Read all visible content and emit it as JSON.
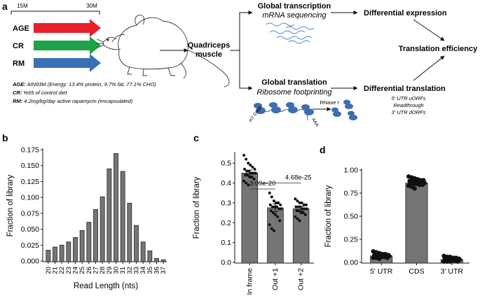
{
  "panel_a": {
    "letter": "a",
    "timeline": {
      "start": "15M",
      "end": "30M"
    },
    "groups": [
      {
        "label": "AGE",
        "color": "#e8202a"
      },
      {
        "label": "CR",
        "color": "#1fa34a"
      },
      {
        "label": "RM",
        "color": "#3b6fb6"
      }
    ],
    "tissue": "Quadriceps\nmuscle",
    "transcription_title": "Global transcription",
    "transcription_sub": "mRNA sequencing",
    "translation_title": "Global translation",
    "translation_sub": "Ribosome footprinting",
    "diff_expression": "Differential expression",
    "translation_efficiency": "Translation efficiency",
    "diff_translation": "Differential translation",
    "diff_translation_items": [
      "5' UTR uORFs",
      "Readthrough",
      "3' UTR dORFs"
    ],
    "rnase": "RNase I",
    "cap": "m7 Gppp",
    "polya": "AAA",
    "legend": [
      {
        "key": "AGE:",
        "text": " AIN93M (Energy: 13.4% protein, 9.7% fat, 77.1% CHO)"
      },
      {
        "key": "CR:",
        "text": " %65 of control diet"
      },
      {
        "key": "RM:",
        "text": " 4.2mg/kg/day active rapamycin (encapsulated)"
      }
    ]
  },
  "chart_data": [
    {
      "panel": "b",
      "type": "bar",
      "xlabel": "Read Length (nts)",
      "ylabel": "Fraction of library",
      "ylim": [
        0,
        0.175
      ],
      "yticks": [
        "0.000",
        "0.025",
        "0.050",
        "0.075",
        "0.100",
        "0.125",
        "0.150",
        "0.175"
      ],
      "categories": [
        "20",
        "21",
        "22",
        "23",
        "24",
        "25",
        "26",
        "27",
        "28",
        "29",
        "30",
        "31",
        "32",
        "33",
        "34",
        "35",
        "36",
        "37"
      ],
      "values": [
        0.017,
        0.022,
        0.025,
        0.03,
        0.037,
        0.048,
        0.061,
        0.081,
        0.101,
        0.145,
        0.169,
        0.141,
        0.091,
        0.056,
        0.03,
        0.016,
        0.004,
        0.002
      ],
      "bar_color": "#757575"
    },
    {
      "panel": "c",
      "type": "bar",
      "ylabel": "Fraction of library",
      "ylim": [
        0,
        0.55
      ],
      "yticks": [
        "0.0",
        "0.1",
        "0.2",
        "0.3",
        "0.4",
        "0.5"
      ],
      "categories": [
        "In frame",
        "Out +1",
        "Out +2"
      ],
      "values": [
        0.45,
        0.275,
        0.27
      ],
      "errors": [
        0.015,
        0.02,
        0.012
      ],
      "points": [
        [
          0.54,
          0.52,
          0.5,
          0.49,
          0.48,
          0.47,
          0.47,
          0.46,
          0.46,
          0.45,
          0.45,
          0.45,
          0.44,
          0.44,
          0.43,
          0.43,
          0.42,
          0.41,
          0.4,
          0.39
        ],
        [
          0.35,
          0.33,
          0.31,
          0.3,
          0.3,
          0.29,
          0.29,
          0.28,
          0.28,
          0.28,
          0.27,
          0.27,
          0.26,
          0.25,
          0.24,
          0.23,
          0.21,
          0.19,
          0.17,
          0.16
        ],
        [
          0.32,
          0.31,
          0.3,
          0.3,
          0.29,
          0.29,
          0.28,
          0.28,
          0.28,
          0.27,
          0.27,
          0.27,
          0.26,
          0.26,
          0.25,
          0.25,
          0.24,
          0.23,
          0.22,
          0.21
        ]
      ],
      "annotations": [
        {
          "text": "3.09e-20",
          "from": "In frame",
          "to": "Out +1"
        },
        {
          "text": "4.68e-25",
          "from": "In frame",
          "to": "Out +2"
        }
      ],
      "bar_color": "#757575"
    },
    {
      "panel": "d",
      "type": "bar",
      "ylabel": "Fraction of library",
      "ylim": [
        0,
        1.0
      ],
      "yticks": [
        "0.00",
        "0.25",
        "0.50",
        "0.75",
        "1.00"
      ],
      "categories": [
        "5' UTR",
        "CDS",
        "3' UTR"
      ],
      "values": [
        0.07,
        0.86,
        0.03
      ],
      "errors": [
        0.01,
        0.015,
        0.01
      ],
      "points": [
        [
          0.12,
          0.11,
          0.1,
          0.09,
          0.09,
          0.08,
          0.08,
          0.08,
          0.07,
          0.07,
          0.07,
          0.07,
          0.06,
          0.06,
          0.06,
          0.06,
          0.05,
          0.05,
          0.05,
          0.04
        ],
        [
          0.93,
          0.92,
          0.91,
          0.9,
          0.89,
          0.89,
          0.88,
          0.88,
          0.87,
          0.87,
          0.86,
          0.86,
          0.86,
          0.85,
          0.85,
          0.84,
          0.84,
          0.83,
          0.82,
          0.8
        ],
        [
          0.07,
          0.06,
          0.06,
          0.05,
          0.05,
          0.04,
          0.04,
          0.04,
          0.03,
          0.03,
          0.03,
          0.03,
          0.02,
          0.02,
          0.02,
          0.02,
          0.01,
          0.01,
          0.01,
          0.01
        ]
      ],
      "bar_color": "#757575"
    }
  ]
}
